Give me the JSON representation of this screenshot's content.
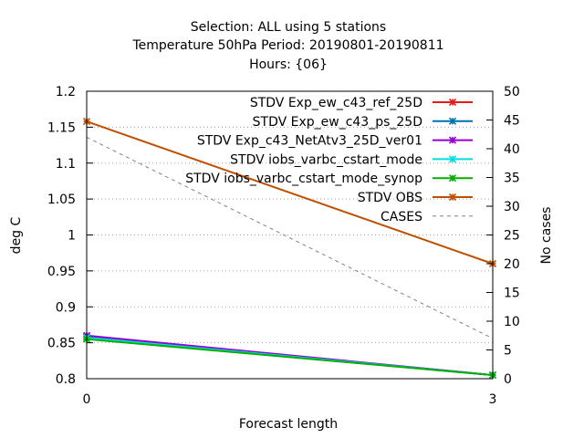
{
  "chart_data": {
    "type": "line",
    "title_lines": [
      "Selection: ALL using     5 stations",
      "Temperature 50hPa   Period: 20190801-20190811",
      "Hours: {06}"
    ],
    "xlabel": "Forecast length",
    "ylabel": "deg C",
    "y2label": "No cases",
    "x_ticks": [
      "0",
      "3"
    ],
    "x": [
      0,
      3
    ],
    "xlim": [
      0,
      3
    ],
    "ylim": [
      0.8,
      1.2
    ],
    "y_ticks": [
      "0.8",
      "0.85",
      "0.9",
      "0.95",
      "1",
      "1.05",
      "1.1",
      "1.15",
      "1.2"
    ],
    "y2lim": [
      0,
      50
    ],
    "y2_ticks": [
      "0",
      "5",
      "10",
      "15",
      "20",
      "25",
      "30",
      "35",
      "40",
      "45",
      "50"
    ],
    "grid": true,
    "legend_position": "top-right",
    "series": [
      {
        "name": "STDV Exp_ew_c43_ref_25D",
        "values": [
          0.858,
          0.805
        ],
        "color": "#e41a1c",
        "marker": "x"
      },
      {
        "name": "STDV Exp_ew_c43_ps_25D",
        "values": [
          0.858,
          0.805
        ],
        "color": "#0072b2",
        "marker": "x"
      },
      {
        "name": "STDV Exp_c43_NetAtv3_25D_ver01",
        "values": [
          0.86,
          0.805
        ],
        "color": "#9400d3",
        "marker": "x"
      },
      {
        "name": "STDV iobs_varbc_cstart_mode",
        "values": [
          0.857,
          0.805
        ],
        "color": "#00e0e0",
        "marker": "x"
      },
      {
        "name": "STDV iobs_varbc_cstart_mode_synop",
        "values": [
          0.855,
          0.805
        ],
        "color": "#00b000",
        "marker": "x"
      },
      {
        "name": "STDV OBS",
        "values": [
          1.158,
          0.96
        ],
        "color": "#c05000",
        "marker": "x"
      },
      {
        "name": "CASES",
        "values": [
          42.0,
          7.0
        ],
        "color": "#808080",
        "dashed": true,
        "axis": "y2"
      }
    ]
  }
}
